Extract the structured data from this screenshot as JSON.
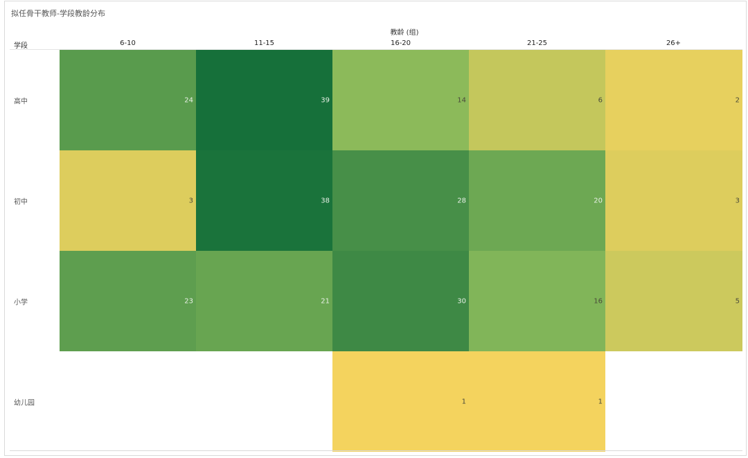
{
  "chart_data": {
    "type": "heatmap",
    "title": "拟任骨干教师-学段教龄分布",
    "xlabel": "教龄 (组)",
    "ylabel": "学段",
    "x_categories": [
      "6-10",
      "11-15",
      "16-20",
      "21-25",
      "26+"
    ],
    "y_categories": [
      "高中",
      "初中",
      "小学",
      "幼儿园"
    ],
    "values": [
      [
        24,
        39,
        14,
        6,
        2
      ],
      [
        3,
        38,
        28,
        20,
        3
      ],
      [
        23,
        21,
        30,
        16,
        5
      ],
      [
        null,
        null,
        1,
        1,
        null
      ]
    ],
    "color_scale": {
      "low": "#f4d35e",
      "mid": "#86b85a",
      "high": "#16703a"
    }
  }
}
